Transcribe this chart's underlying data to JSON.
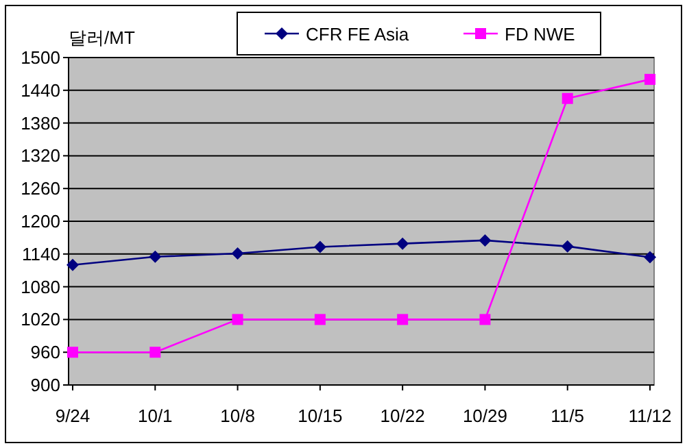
{
  "chart_data": {
    "type": "line",
    "ylabel": "달러/MT",
    "categories": [
      "9/24",
      "10/1",
      "10/8",
      "10/15",
      "10/22",
      "10/29",
      "11/5",
      "11/12"
    ],
    "series": [
      {
        "name": "CFR FE Asia",
        "color": "#000080",
        "marker": "diamond",
        "values": [
          1120,
          1135,
          1141,
          1153,
          1159,
          1165,
          1154,
          1134
        ]
      },
      {
        "name": "FD NWE",
        "color": "#ff00ff",
        "marker": "square",
        "values": [
          960,
          960,
          1020,
          1020,
          1020,
          1020,
          1425,
          1460
        ]
      }
    ],
    "ylim": [
      900,
      1500
    ],
    "yticks": [
      900,
      960,
      1020,
      1080,
      1140,
      1200,
      1260,
      1320,
      1380,
      1440,
      1500
    ],
    "grid": "y",
    "legend": "top",
    "line_style": "solid"
  }
}
